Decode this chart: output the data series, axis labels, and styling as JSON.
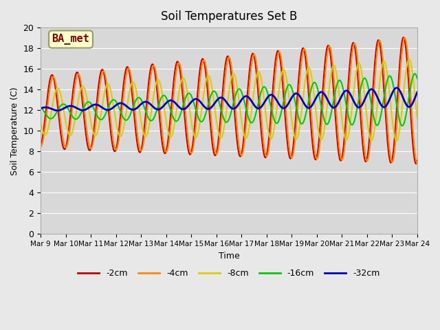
{
  "title": "Soil Temperatures Set B",
  "xlabel": "Time",
  "ylabel": "Soil Temperature (C)",
  "annotation": "BA_met",
  "ylim": [
    0,
    20
  ],
  "fig_facecolor": "#e8e8e8",
  "ax_facecolor": "#d8d8d8",
  "series_order": [
    "-2cm",
    "-4cm",
    "-8cm",
    "-16cm",
    "-32cm"
  ],
  "series": {
    "-2cm": {
      "color": "#cc0000",
      "lw": 1.5
    },
    "-4cm": {
      "color": "#ff8800",
      "lw": 1.5
    },
    "-8cm": {
      "color": "#ddcc00",
      "lw": 1.5
    },
    "-16cm": {
      "color": "#00cc00",
      "lw": 1.5
    },
    "-32cm": {
      "color": "#0000cc",
      "lw": 2.0
    }
  },
  "xtick_labels": [
    "Mar 9",
    "Mar 10",
    "Mar 11",
    "Mar 12",
    "Mar 13",
    "Mar 14",
    "Mar 15",
    "Mar 16",
    "Mar 17",
    "Mar 18",
    "Mar 19",
    "Mar 20",
    "Mar 21",
    "Mar 22",
    "Mar 23",
    "Mar 24"
  ],
  "ytick_values": [
    0,
    2,
    4,
    6,
    8,
    10,
    12,
    14,
    16,
    18,
    20
  ],
  "num_days": 15,
  "pts_per_day": 48
}
